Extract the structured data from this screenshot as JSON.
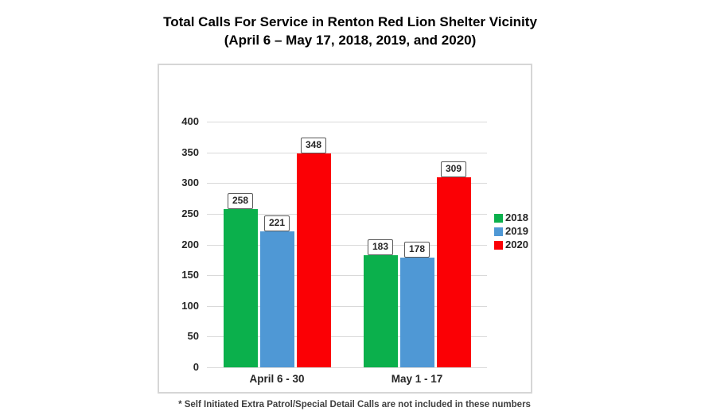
{
  "title": {
    "line1": "Total Calls For Service in Renton Red Lion Shelter Vicinity",
    "line2": "(April 6 – May 17, 2018, 2019, and 2020)"
  },
  "footnote": "* Self Initiated Extra Patrol/Special Detail Calls are not included in these numbers",
  "chart_data": {
    "type": "bar",
    "title": "Total Calls For Service in Renton Red Lion Shelter Vicinity (April 6 – May 17, 2018, 2019, and 2020)",
    "categories": [
      "April 6 - 30",
      "May 1 - 17"
    ],
    "series": [
      {
        "name": "2018",
        "color": "#0BB04C",
        "values": [
          258,
          183
        ]
      },
      {
        "name": "2019",
        "color": "#4F98D5",
        "values": [
          221,
          178
        ]
      },
      {
        "name": "2020",
        "color": "#FB0005",
        "values": [
          348,
          309
        ]
      }
    ],
    "ylim": [
      0,
      400
    ],
    "yticks": [
      0,
      50,
      100,
      150,
      200,
      250,
      300,
      350,
      400
    ],
    "grid": true,
    "data_labels": true,
    "legend_position": "right"
  },
  "style": {
    "gridline_color": "#D9D9D9",
    "axis_text_color": "#262626",
    "label_box_border": "#595959",
    "chart_border_color": "#D6D6D6",
    "title_color": "#000000",
    "footnote_color": "#404040"
  }
}
